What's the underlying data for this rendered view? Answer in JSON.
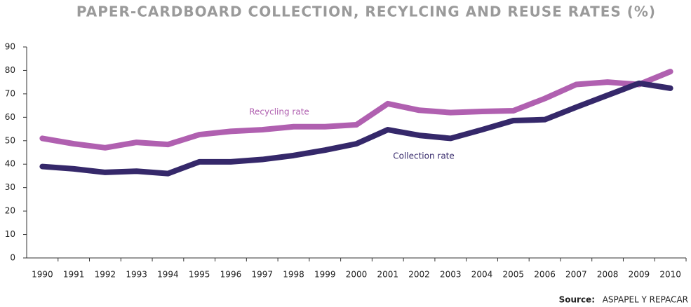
{
  "chart_data": {
    "type": "line",
    "title": "PAPER-CARDBOARD COLLECTION, RECYLCING AND REUSE RATES (%)",
    "categories": [
      "1990",
      "1991",
      "1992",
      "1993",
      "1994",
      "1995",
      "1996",
      "1997",
      "1998",
      "1999",
      "2000",
      "2001",
      "2002",
      "2003",
      "2004",
      "2005",
      "2006",
      "2007",
      "2008",
      "2009",
      "2010"
    ],
    "series": [
      {
        "name": "Recycling rate",
        "color": "#b060b0",
        "values": [
          51,
          48.7,
          47,
          49.3,
          48.4,
          52.6,
          54,
          54.7,
          56,
          56,
          56.8,
          65.8,
          63,
          62,
          62.5,
          62.8,
          68,
          74,
          75,
          74,
          79.5
        ]
      },
      {
        "name": "Collection rate",
        "color": "#35286a",
        "values": [
          39,
          38,
          36.5,
          37,
          36,
          41,
          41,
          42,
          43.7,
          46,
          48.7,
          54.7,
          52.3,
          51,
          54.7,
          58.6,
          59,
          64.3,
          69.4,
          74.5,
          72.4
        ]
      }
    ],
    "ylim": [
      0,
      90
    ],
    "yticks": [
      0,
      10,
      20,
      30,
      40,
      50,
      60,
      70,
      80,
      90
    ],
    "source_label": "Source:",
    "source": "ASPAPEL Y REPACAR"
  }
}
